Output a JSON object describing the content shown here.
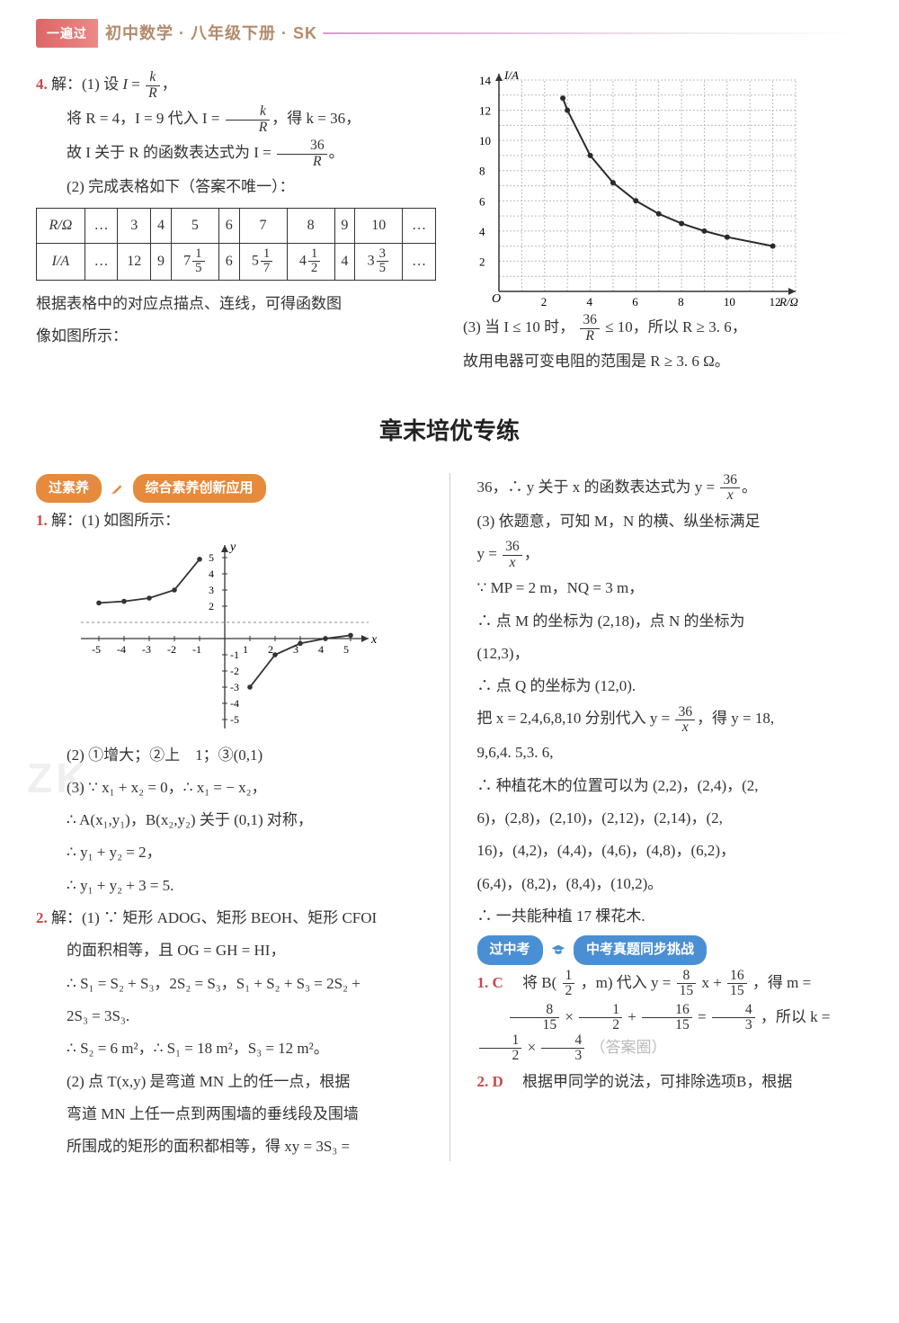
{
  "header": {
    "tab": "一遍过",
    "title": "初中数学 · 八年级下册 · SK"
  },
  "top_section": {
    "left": {
      "q4_label": "4.",
      "line1_a": "解：(1) 设 ",
      "line1_frac_num": "k",
      "line1_frac_den": "R",
      "line1_b": "，",
      "line2_a": "将 R = 4，I = 9 代入 I = ",
      "line2_frac_num": "k",
      "line2_frac_den": "R",
      "line2_b": "，得 k = 36，",
      "line3_a": "故 I 关于 R 的函数表达式为 I = ",
      "line3_frac_num": "36",
      "line3_frac_den": "R",
      "line3_b": "。",
      "line4": "(2) 完成表格如下（答案不唯一）：",
      "table": {
        "row_headers": [
          "R/Ω",
          "I/A"
        ],
        "cols": [
          "…",
          "3",
          "4",
          "5",
          "6",
          "7",
          "8",
          "9",
          "10",
          "…"
        ],
        "row2": [
          "…",
          "12",
          "9",
          "7 1/5",
          "6",
          "5 1/7",
          "4 1/2",
          "4",
          "3 3/5",
          "…"
        ]
      },
      "line5": "根据表格中的对应点描点、连线，可得函数图像如图所示：",
      "line5a": "像如图所示："
    },
    "right": {
      "graph": {
        "type": "line",
        "xlim": [
          0,
          13
        ],
        "ylim": [
          0,
          14
        ],
        "xticks": [
          2,
          4,
          6,
          8,
          10,
          12
        ],
        "yticks": [
          2,
          4,
          6,
          8,
          10,
          12,
          14
        ],
        "xlabel": "R/Ω",
        "ylabel": "I/A",
        "grid_color": "#bbbbbb",
        "axis_color": "#333333",
        "curve_color": "#2a2a2a",
        "points": [
          [
            2.8,
            12.8
          ],
          [
            3,
            12
          ],
          [
            4,
            9
          ],
          [
            5,
            7.2
          ],
          [
            6,
            6
          ],
          [
            7,
            5.14
          ],
          [
            8,
            4.5
          ],
          [
            9,
            4
          ],
          [
            10,
            3.6
          ],
          [
            12,
            3
          ]
        ]
      },
      "line1_a": "(3) 当 I ≤ 10 时，",
      "line1_frac_num": "36",
      "line1_frac_den": "R",
      "line1_b": " ≤ 10，所以 R ≥ 3. 6，",
      "line2": "故用电器可变电阻的范围是 R ≥ 3. 6 Ω。"
    }
  },
  "section_title": "章末培优专练",
  "bottom_section": {
    "left": {
      "pill1_a": "过素养",
      "pill1_b": "综合素养创新应用",
      "q1_label": "1.",
      "q1_line1": "解：(1) 如图所示：",
      "graph": {
        "type": "scatter-line",
        "xlim": [
          -5.5,
          5.5
        ],
        "ylim": [
          -5.5,
          5.5
        ],
        "xticks": [
          -5,
          -4,
          -3,
          -2,
          -1,
          1,
          2,
          3,
          4,
          5
        ],
        "yticks": [
          -5,
          -4,
          -3,
          -2,
          -1,
          2,
          3,
          4,
          5
        ],
        "axis_color": "#333",
        "curve_color": "#333",
        "dash_y": 1,
        "points_neg": [
          [
            -5,
            2.2
          ],
          [
            -4,
            2.3
          ],
          [
            -3,
            2.5
          ],
          [
            -2,
            3
          ],
          [
            -1,
            4.9
          ]
        ],
        "points_pos": [
          [
            1,
            -3
          ],
          [
            2,
            -1
          ],
          [
            3,
            -0.3
          ],
          [
            4,
            0
          ],
          [
            5,
            0.2
          ]
        ]
      },
      "q1_line2": "(2) ①增大；②上　1；③(0,1)",
      "q1_line3": "(3) ∵ x₁ + x₂ = 0，∴ x₁ = − x₂，",
      "q1_line4": "∴ A(x₁,y₁)，B(x₂,y₂) 关于 (0,1) 对称，",
      "q1_line5": "∴ y₁ + y₂ = 2，",
      "q1_line6": "∴ y₁ + y₂ + 3 = 5.",
      "q2_label": "2.",
      "q2_line1": "解：(1) ∵ 矩形 ADOG、矩形 BEOH、矩形 CFOI",
      "q2_line2": "的面积相等，且 OG = GH = HI，",
      "q2_line3": "∴ S₁ = S₂ + S₃，2S₂ = S₃，S₁ + S₂ + S₃ = 2S₂ +",
      "q2_line4": "2S₃ = 3S₃.",
      "q2_line5": "∴ S₂ = 6 m²，∴ S₁ = 18 m²，S₃ = 12 m²。",
      "q2_line6": "(2) 点 T(x,y) 是弯道 MN 上的任一点，根据",
      "q2_line7": "弯道 MN 上任一点到两围墙的垂线段及围墙",
      "q2_line8": "所围成的矩形的面积都相等，得 xy = 3S₃ ="
    },
    "right": {
      "line1_a": "36，∴ y 关于 x 的函数表达式为 y = ",
      "line1_frac_num": "36",
      "line1_frac_den": "x",
      "line1_b": "。",
      "line2": "(3) 依题意，可知 M，N 的横、纵坐标满足",
      "line3_a": "y = ",
      "line3_frac_num": "36",
      "line3_frac_den": "x",
      "line3_b": "，",
      "line4": "∵ MP = 2 m，NQ = 3 m，",
      "line5": "∴ 点 M 的坐标为 (2,18)，点 N 的坐标为",
      "line6": "(12,3)，",
      "line7": "∴ 点 Q 的坐标为 (12,0).",
      "line8_a": "把 x = 2,4,6,8,10 分别代入 y = ",
      "line8_frac_num": "36",
      "line8_frac_den": "x",
      "line8_b": "，得 y = 18,",
      "line9": "9,6,4. 5,3. 6,",
      "line10": "∴ 种植花木的位置可以为 (2,2)，(2,4)，(2,",
      "line11": "6)，(2,8)，(2,10)，(2,12)，(2,14)，(2,",
      "line12": "16)，(4,2)，(4,4)，(4,6)，(4,8)，(6,2)，",
      "line13": "(6,4)，(8,2)，(8,4)，(10,2)。",
      "line14": "∴ 一共能种植 17 棵花木.",
      "pill2_a": "过中考",
      "pill2_b": "中考真题同步挑战",
      "q1_label": "1. C",
      "q1_a": "将 B(",
      "q1_frac1_num": "1",
      "q1_frac1_den": "2",
      "q1_b": "，m) 代入 y = ",
      "q1_frac2_num": "8",
      "q1_frac2_den": "15",
      "q1_c": "x + ",
      "q1_frac3_num": "16",
      "q1_frac3_den": "15",
      "q1_d": "，得 m =",
      "q1e_frac1_num": "8",
      "q1e_frac1_den": "15",
      "q1e_a": " × ",
      "q1e_frac2_num": "1",
      "q1e_frac2_den": "2",
      "q1e_b": " + ",
      "q1e_frac3_num": "16",
      "q1e_frac3_den": "15",
      "q1e_c": " = ",
      "q1e_frac4_num": "4",
      "q1e_frac4_den": "3",
      "q1e_d": "，所以 k = ",
      "q1e_frac5_num": "1",
      "q1e_frac5_den": "2",
      "q1e_e": " × ",
      "q1e_frac6_num": "4",
      "q1e_frac6_den": "3",
      "q1e_f": "（答案圈）",
      "q2_label": "2. D",
      "q2_text": "根据甲同学的说法，可排除选项B，根据"
    }
  },
  "watermarks": {
    "wm1": "ZK",
    "wm2": "答案圈"
  }
}
